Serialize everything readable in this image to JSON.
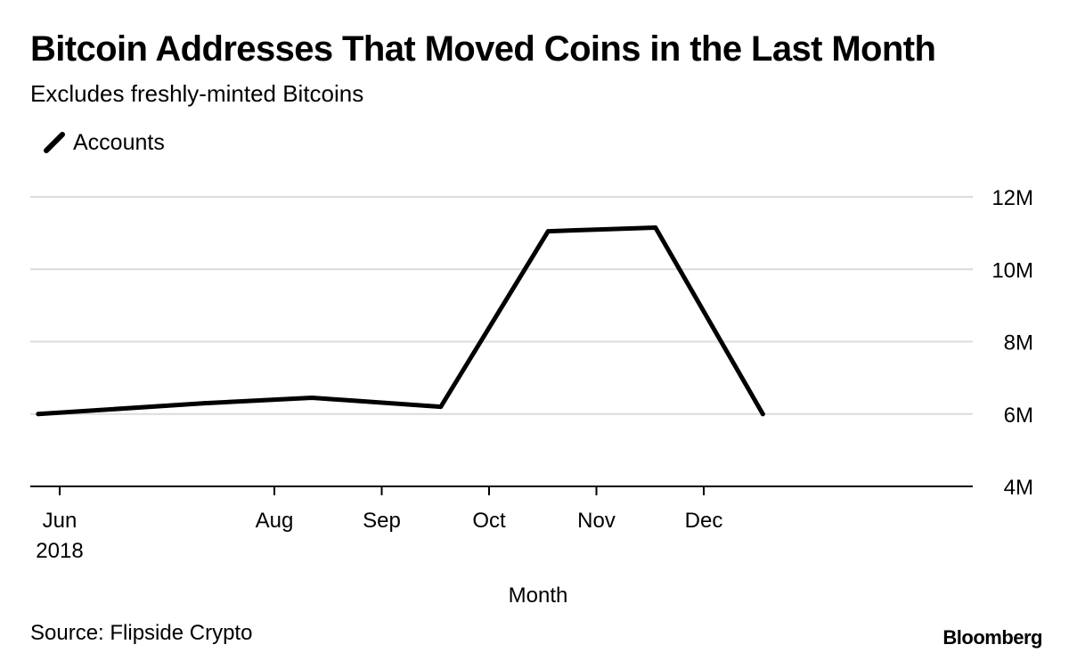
{
  "chart_data": {
    "type": "line",
    "title": "Bitcoin Addresses That Moved Coins in the Last Month",
    "subtitle": "Excludes freshly-minted Bitcoins",
    "legend": [
      "Accounts"
    ],
    "legend_position": "top-left",
    "xlabel": "Month",
    "ylabel": "",
    "ylim": [
      4,
      12
    ],
    "y_unit_suffix": "M",
    "y_ticks": [
      4,
      6,
      8,
      10,
      12
    ],
    "y_tick_labels": [
      "4M",
      "6M",
      "8M",
      "10M",
      "12M"
    ],
    "x_ticks": [
      0,
      2,
      3,
      4,
      5,
      6
    ],
    "x_tick_labels": [
      "Jun",
      "Aug",
      "Sep",
      "Oct",
      "Nov",
      "Dec"
    ],
    "x_tick_sublabels": [
      "2018",
      "",
      "",
      "",
      "",
      ""
    ],
    "grid": true,
    "series": [
      {
        "name": "Accounts",
        "color": "#000000",
        "x": [
          -0.2,
          1.35,
          2.35,
          3.55,
          4.55,
          5.55,
          6.55
        ],
        "values": [
          6.0,
          6.3,
          6.45,
          6.2,
          11.05,
          11.15,
          6.0
        ]
      }
    ]
  },
  "footer": {
    "source": "Source: Flipside Crypto",
    "brand": "Bloomberg"
  },
  "colors": {
    "line": "#000000",
    "grid": "#dcdcdc",
    "axis": "#000000"
  }
}
